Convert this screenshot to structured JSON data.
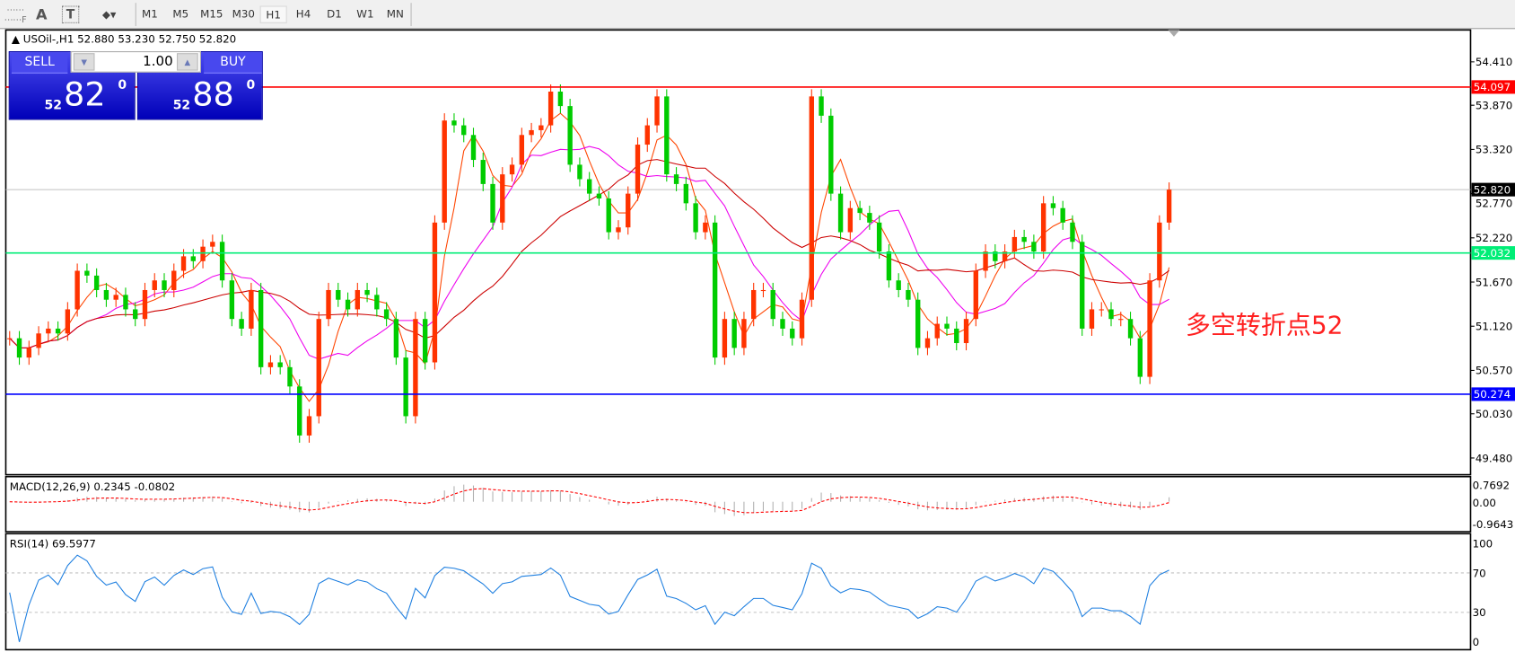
{
  "toolbar": {
    "icons": [
      "grid-f-icon",
      "text-icon",
      "text-label-icon",
      "arrows-icon"
    ],
    "text_icon": "A",
    "text_label_icon": "T",
    "arrow_caret": "▾",
    "timeframes": [
      "M1",
      "M5",
      "M15",
      "M30",
      "H1",
      "H4",
      "D1",
      "W1",
      "MN"
    ],
    "active_timeframe": "H1"
  },
  "chart_header": {
    "symbol": "USOil-,H1",
    "open": "52.880",
    "high": "53.230",
    "low": "52.750",
    "close": "52.820",
    "arrow": "▲"
  },
  "trade_panel": {
    "sell_label": "SELL",
    "buy_label": "BUY",
    "lot": "1.00",
    "sell": {
      "prefix": "52",
      "main": "82",
      "sup": "0"
    },
    "buy": {
      "prefix": "52",
      "main": "88",
      "sup": "0"
    }
  },
  "annotation": "多空转折点52",
  "colors": {
    "bull": "#ff3300",
    "bear": "#00cc00",
    "ma_fast": "#ff4500",
    "ma_mid": "#ee00ee",
    "ma_slow": "#cc0000",
    "resistance": "#ff0000",
    "pivot": "#00ee77",
    "support": "#0000ff",
    "rsi": "#1e7fe0",
    "macd_signal": "#ff0000"
  },
  "chart_data": {
    "type": "candlestick",
    "price_axis": {
      "ticks": [
        "54.410",
        "53.870",
        "53.320",
        "52.770",
        "52.220",
        "51.670",
        "51.120",
        "50.570",
        "50.030",
        "49.480"
      ],
      "range": [
        49.3,
        54.9
      ]
    },
    "levels": [
      {
        "label": "54.097",
        "value": 54.097,
        "color": "#ff0000"
      },
      {
        "label": "52.032",
        "value": 52.032,
        "color": "#00ee77"
      },
      {
        "label": "50.274",
        "value": 50.274,
        "color": "#0000ff"
      }
    ],
    "current_price": {
      "label": "52.820",
      "value": 52.82
    },
    "close": [
      50.97,
      50.73,
      50.85,
      51.03,
      51.09,
      51.03,
      51.33,
      51.81,
      51.75,
      51.57,
      51.45,
      51.51,
      51.33,
      51.21,
      51.57,
      51.69,
      51.57,
      51.81,
      51.99,
      51.93,
      52.11,
      52.17,
      51.69,
      51.21,
      51.09,
      51.57,
      50.61,
      50.67,
      50.61,
      50.37,
      49.76,
      50.0,
      51.21,
      51.57,
      51.45,
      51.33,
      51.57,
      51.51,
      51.33,
      51.21,
      50.73,
      50.0,
      51.21,
      50.67,
      52.41,
      53.68,
      53.62,
      53.5,
      53.19,
      52.89,
      52.41,
      53.01,
      53.13,
      53.5,
      53.56,
      53.62,
      54.04,
      53.86,
      53.13,
      52.95,
      52.77,
      52.71,
      52.29,
      52.35,
      52.77,
      53.38,
      53.62,
      53.98,
      53.01,
      52.89,
      52.65,
      52.29,
      52.41,
      50.73,
      51.21,
      50.85,
      51.21,
      51.57,
      51.57,
      51.21,
      51.09,
      50.97,
      51.45,
      53.98,
      53.74,
      52.77,
      52.29,
      52.59,
      52.53,
      52.41,
      52.05,
      51.69,
      51.57,
      51.45,
      50.85,
      50.97,
      51.15,
      51.09,
      50.91,
      51.21,
      51.81,
      52.05,
      51.93,
      52.05,
      52.23,
      52.17,
      52.05,
      52.65,
      52.59,
      52.41,
      52.17,
      51.09,
      51.33,
      51.33,
      51.21,
      51.21,
      50.97,
      50.49,
      51.69,
      52.41,
      52.82
    ],
    "macd": {
      "label": "MACD(12,26,9) 0.2345 -0.0802",
      "ticks": [
        "0.7692",
        "0.00",
        "-0.9643"
      ],
      "range": [
        -0.9643,
        0.7692
      ]
    },
    "rsi": {
      "label": "RSI(14) 69.5977",
      "ticks": [
        "100",
        "70",
        "30",
        "0"
      ],
      "levels": [
        70,
        30
      ],
      "range": [
        0,
        100
      ]
    }
  }
}
